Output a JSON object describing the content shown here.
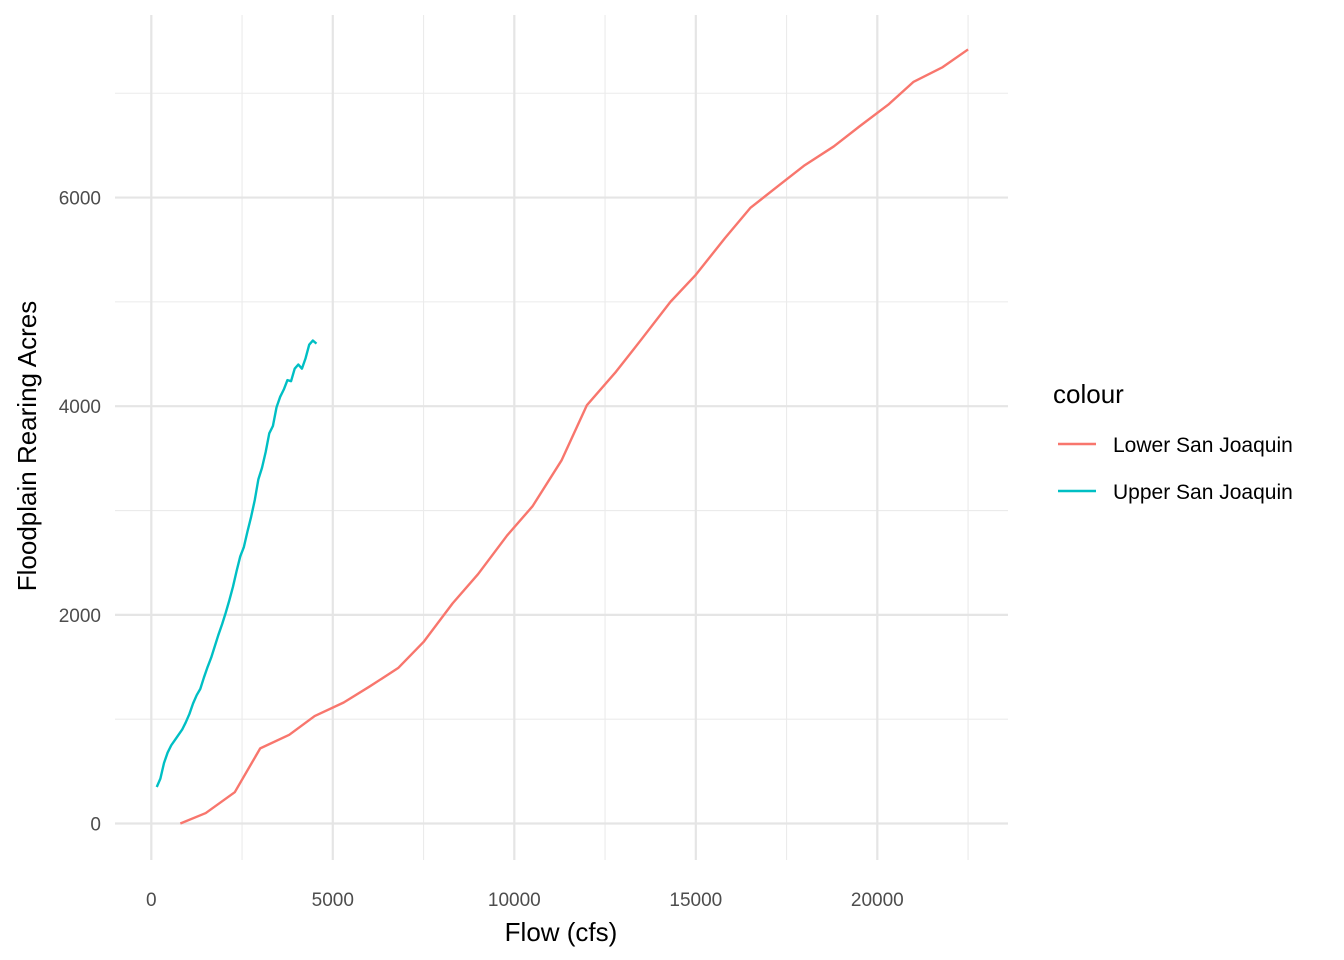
{
  "chart_data": {
    "type": "line",
    "title": "",
    "xlabel": "Flow (cfs)",
    "ylabel": "Floodplain Rearing Acres",
    "xlim": [
      -1000,
      23600
    ],
    "ylim": [
      -350,
      7750
    ],
    "x_ticks": [
      0,
      5000,
      10000,
      15000,
      20000
    ],
    "x_tick_labels": [
      "0",
      "5000",
      "10000",
      "15000",
      "20000"
    ],
    "x_minor_ticks": [
      2500,
      7500,
      12500,
      17500,
      22500
    ],
    "y_ticks": [
      0,
      2000,
      4000,
      6000
    ],
    "y_tick_labels": [
      "0",
      "2000",
      "4000",
      "6000"
    ],
    "y_minor_ticks": [
      1000,
      3000,
      5000,
      7000
    ],
    "grid": true,
    "legend": {
      "title": "colour",
      "position": "right"
    },
    "series": [
      {
        "name": "Lower San Joaquin",
        "color": "#F8766D",
        "x": [
          800,
          1500,
          2300,
          3000,
          3800,
          4500,
          5300,
          6000,
          6800,
          7500,
          8300,
          9000,
          9800,
          10500,
          11300,
          12000,
          12800,
          13500,
          14300,
          15000,
          15800,
          16500,
          17300,
          18000,
          18800,
          19500,
          20300,
          21000,
          21800,
          22500
        ],
        "y": [
          0,
          100,
          300,
          720,
          850,
          1030,
          1160,
          1310,
          1490,
          1740,
          2110,
          2390,
          2760,
          3040,
          3480,
          4010,
          4330,
          4640,
          5000,
          5260,
          5610,
          5900,
          6120,
          6310,
          6490,
          6680,
          6890,
          7110,
          7250,
          7420
        ]
      },
      {
        "name": "Upper San Joaquin",
        "color": "#00BFC4",
        "x": [
          150,
          250,
          350,
          450,
          550,
          650,
          750,
          850,
          950,
          1050,
          1150,
          1250,
          1350,
          1450,
          1550,
          1650,
          1750,
          1850,
          1950,
          2050,
          2150,
          2250,
          2350,
          2450,
          2550,
          2650,
          2750,
          2850,
          2950,
          3050,
          3150,
          3250,
          3350,
          3450,
          3550,
          3650,
          3750,
          3850,
          3950,
          4050,
          4150,
          4250,
          4350,
          4450,
          4550
        ],
        "y": [
          350,
          430,
          580,
          680,
          750,
          800,
          850,
          900,
          970,
          1050,
          1150,
          1230,
          1290,
          1400,
          1500,
          1590,
          1700,
          1810,
          1910,
          2020,
          2140,
          2270,
          2420,
          2560,
          2650,
          2800,
          2940,
          3100,
          3300,
          3410,
          3560,
          3740,
          3810,
          3990,
          4090,
          4160,
          4250,
          4240,
          4360,
          4400,
          4360,
          4460,
          4590,
          4630,
          4600
        ]
      }
    ]
  }
}
